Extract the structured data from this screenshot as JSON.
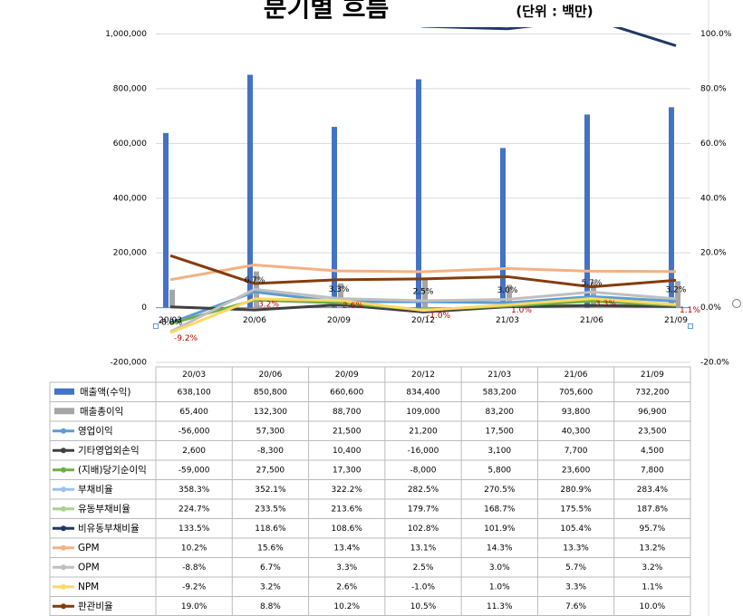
{
  "chart_data": {
    "type": "combo",
    "title": "분기별 흐름",
    "subtitle": "(단위 : 백만)",
    "categories": [
      "20/03",
      "20/06",
      "20/09",
      "20/12",
      "21/03",
      "21/06",
      "21/09"
    ],
    "ylim": [
      -200000,
      1000000
    ],
    "yticks": [
      {
        "value": -200000,
        "label": "-200,000"
      },
      0,
      {
        "value": 200000,
        "label": "200,000"
      },
      {
        "value": 400000,
        "label": "400,000"
      },
      {
        "value": 600000,
        "label": "600,000"
      },
      {
        "value": 800000,
        "label": "800,000"
      },
      {
        "value": 1000000,
        "label": "1,000,000"
      }
    ],
    "y2lim": [
      -20,
      100
    ],
    "y2ticks": [
      {
        "value": -20,
        "label": "-20.0%"
      },
      {
        "value": 0,
        "label": "0.0%"
      },
      {
        "value": 20,
        "label": "20.0%"
      },
      {
        "value": 40,
        "label": "40.0%"
      },
      {
        "value": 60,
        "label": "60.0%"
      },
      {
        "value": 80,
        "label": "80.0%"
      },
      {
        "value": 100,
        "label": "100.0%"
      }
    ],
    "grid": true,
    "series": [
      {
        "name": "매출액(수익)",
        "type": "bar",
        "color": "#4472c4",
        "values": [
          638100,
          850800,
          660600,
          834400,
          583200,
          705600,
          732200
        ],
        "value_labels": [
          "638,100",
          "850,800",
          "660,600",
          "834,400",
          "583,200",
          "705,600",
          "732,200"
        ]
      },
      {
        "name": "매출총이익",
        "type": "bar",
        "color": "#a5a5a5",
        "values": [
          65400,
          132300,
          88700,
          109000,
          83200,
          93800,
          96900
        ],
        "value_labels": [
          "65,400",
          "132,300",
          "88,700",
          "109,000",
          "83,200",
          "93,800",
          "96,900"
        ]
      },
      {
        "name": "영업이익",
        "type": "line",
        "color": "#5b9bd5",
        "values": [
          -56000,
          57300,
          21500,
          21200,
          17500,
          40300,
          23500
        ],
        "value_labels": [
          "-56,000",
          "57,300",
          "21,500",
          "21,200",
          "17,500",
          "40,300",
          "23,500"
        ]
      },
      {
        "name": "기타영업외손익",
        "type": "line",
        "color": "#404040",
        "values": [
          2600,
          -8300,
          10400,
          -16000,
          3100,
          7700,
          4500
        ],
        "value_labels": [
          "2,600",
          "-8,300",
          "10,400",
          "-16,000",
          "3,100",
          "7,700",
          "4,500"
        ]
      },
      {
        "name": "(지배)당기순이익",
        "type": "line",
        "color": "#70ad47",
        "values": [
          -59000,
          27500,
          17300,
          -8000,
          5800,
          23600,
          7800
        ],
        "value_labels": [
          "-59,000",
          "27,500",
          "17,300",
          "-8,000",
          "5,800",
          "23,600",
          "7,800"
        ]
      },
      {
        "name": "부채비율",
        "type": "line",
        "axis": "y2",
        "color": "#9dc3e6",
        "values": [
          358.3,
          352.1,
          322.2,
          282.5,
          270.5,
          280.9,
          283.4
        ],
        "value_labels": [
          "358.3%",
          "352.1%",
          "322.2%",
          "282.5%",
          "270.5%",
          "280.9%",
          "283.4%"
        ]
      },
      {
        "name": "유동부채비율",
        "type": "line",
        "axis": "y2",
        "color": "#a9d18e",
        "values": [
          224.7,
          233.5,
          213.6,
          179.7,
          168.7,
          175.5,
          187.8
        ],
        "value_labels": [
          "224.7%",
          "233.5%",
          "213.6%",
          "179.7%",
          "168.7%",
          "175.5%",
          "187.8%"
        ]
      },
      {
        "name": "비유동부채비율",
        "type": "line",
        "axis": "y2",
        "color": "#1f3864",
        "values": [
          133.5,
          118.6,
          108.6,
          102.8,
          101.9,
          105.4,
          95.7
        ],
        "value_labels": [
          "133.5%",
          "118.6%",
          "108.6%",
          "102.8%",
          "101.9%",
          "105.4%",
          "95.7%"
        ]
      },
      {
        "name": "GPM",
        "type": "line",
        "axis": "y2",
        "color": "#f4b183",
        "values": [
          10.2,
          15.6,
          13.4,
          13.1,
          14.3,
          13.3,
          13.2
        ],
        "value_labels": [
          "10.2%",
          "15.6%",
          "13.4%",
          "13.1%",
          "14.3%",
          "13.3%",
          "13.2%"
        ]
      },
      {
        "name": "OPM",
        "type": "line",
        "axis": "y2",
        "color": "#bfbfbf",
        "values": [
          -8.8,
          6.7,
          3.3,
          2.5,
          3.0,
          5.7,
          3.2
        ],
        "value_labels": [
          "-8.8%",
          "6.7%",
          "3.3%",
          "2.5%",
          "3.0%",
          "5.7%",
          "3.2%"
        ],
        "show_labels": true,
        "label_color": "#000000"
      },
      {
        "name": "NPM",
        "type": "line",
        "axis": "y2",
        "color": "#ffd966",
        "values": [
          -9.2,
          3.2,
          2.6,
          -1.0,
          1.0,
          3.3,
          1.1
        ],
        "value_labels": [
          "-9.2%",
          "3.2%",
          "2.6%",
          "-1.0%",
          "1.0%",
          "3.3%",
          "1.1%"
        ],
        "show_labels": true,
        "label_color": "#c00000"
      },
      {
        "name": "판관비율",
        "type": "line",
        "axis": "y2",
        "color": "#843c0c",
        "values": [
          19.0,
          8.8,
          10.2,
          10.5,
          11.3,
          7.6,
          10.0
        ],
        "value_labels": [
          "19.0%",
          "8.8%",
          "10.2%",
          "10.5%",
          "11.3%",
          "7.6%",
          "10.0%"
        ]
      }
    ]
  }
}
